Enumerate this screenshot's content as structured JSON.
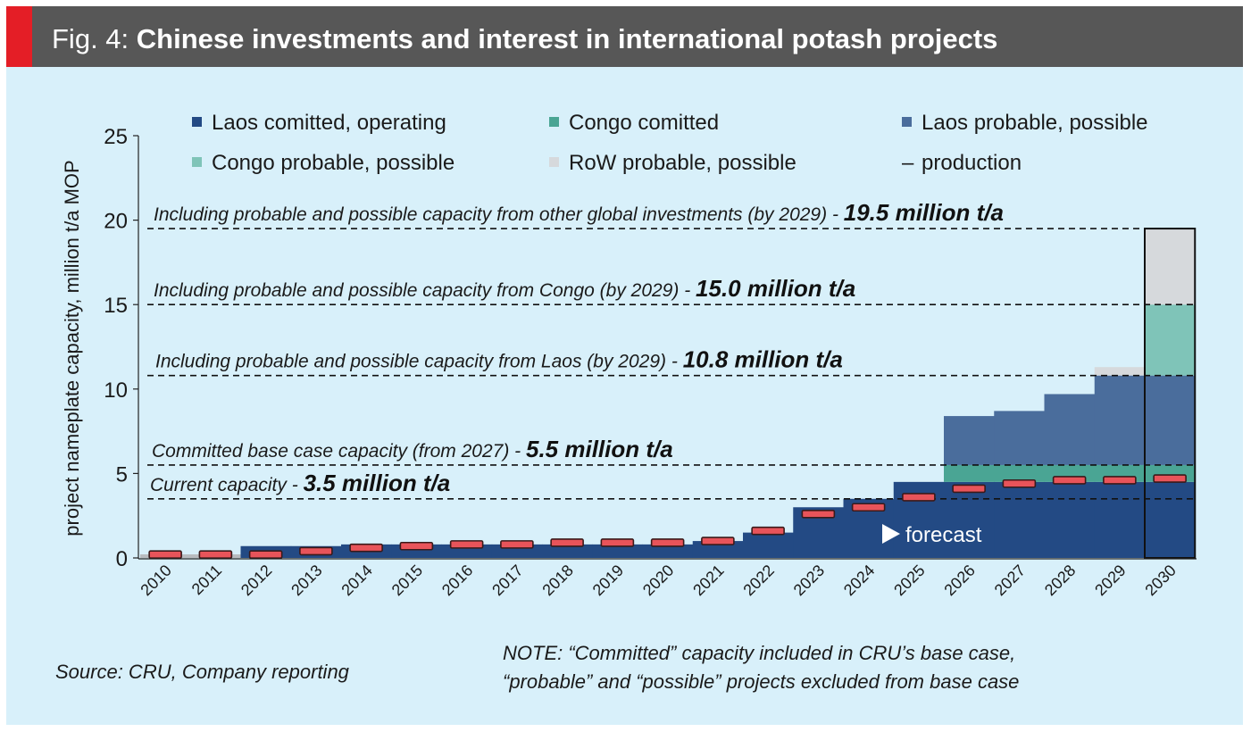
{
  "header": {
    "fig_label": "Fig. 4: ",
    "title": "Chinese investments and interest in international potash projects"
  },
  "colors": {
    "header_bg": "#575757",
    "accent_red": "#e41e26",
    "panel_bg": "#d8f0fa",
    "laos_committed": "#234a84",
    "congo_committed": "#4aa594",
    "laos_probable": "#4a6d9c",
    "congo_probable": "#7fc4b8",
    "row_probable": "#d6d9dc",
    "production": "#e8545a"
  },
  "chart_data": {
    "type": "bar",
    "stacked": true,
    "title": "Chinese investments and interest in international potash projects",
    "xlabel": "",
    "ylabel": "project nameplate capacity, million t/a MOP",
    "ylim": [
      0,
      25
    ],
    "yticks": [
      "0",
      "5",
      "10",
      "15",
      "20",
      "25"
    ],
    "categories": [
      "2010",
      "2011",
      "2012",
      "2013",
      "2014",
      "2015",
      "2016",
      "2017",
      "2018",
      "2019",
      "2020",
      "2021",
      "2022",
      "2023",
      "2024",
      "2025",
      "2026",
      "2027",
      "2028",
      "2029",
      "2030"
    ],
    "series": [
      {
        "name": "Laos comitted, operating",
        "color_key": "laos_committed",
        "values": [
          0,
          0,
          0.7,
          0.7,
          0.8,
          0.8,
          0.8,
          0.8,
          0.8,
          0.8,
          0.8,
          1.0,
          1.5,
          3.0,
          3.5,
          4.5,
          4.5,
          4.5,
          4.5,
          4.5,
          4.5
        ]
      },
      {
        "name": "Congo comitted",
        "color_key": "congo_committed",
        "values": [
          0,
          0,
          0,
          0,
          0,
          0,
          0,
          0,
          0,
          0,
          0,
          0,
          0,
          0,
          0,
          0,
          1.0,
          1.0,
          1.0,
          1.0,
          1.0
        ]
      },
      {
        "name": "Laos probable, possible",
        "color_key": "laos_probable",
        "values": [
          0,
          0,
          0,
          0,
          0,
          0,
          0,
          0,
          0,
          0,
          0,
          0,
          0,
          0,
          0,
          0,
          2.9,
          3.2,
          4.2,
          5.3,
          5.3
        ]
      },
      {
        "name": "Congo probable, possible",
        "color_key": "congo_probable",
        "values": [
          0,
          0,
          0,
          0,
          0,
          0,
          0,
          0,
          0,
          0,
          0,
          0,
          0,
          0,
          0,
          0,
          0,
          0,
          0,
          0,
          4.2
        ]
      },
      {
        "name": "RoW probable, possible",
        "color_key": "row_probable",
        "values": [
          0,
          0,
          0,
          0,
          0,
          0,
          0,
          0,
          0,
          0,
          0,
          0,
          0,
          0,
          0,
          0,
          0,
          0,
          0,
          0.5,
          4.5
        ]
      }
    ],
    "production": {
      "name": "production",
      "values": [
        0.2,
        0.2,
        0.2,
        0.4,
        0.6,
        0.7,
        0.8,
        0.8,
        0.9,
        0.9,
        0.9,
        1.0,
        1.6,
        2.6,
        3.0,
        3.6,
        4.1,
        4.4,
        4.6,
        4.6,
        4.7
      ]
    },
    "legend": {
      "placement": "top",
      "items": [
        "Laos comitted, operating",
        "Congo comitted",
        "Laos probable, possible",
        "Congo probable, possible",
        "RoW probable, possible",
        "production"
      ],
      "production_marker": "–"
    },
    "annotations": [
      {
        "value": 19.5,
        "text": "Including probable and possible capacity from other global investments (by 2029) - ",
        "bold": "19.5 million t/a"
      },
      {
        "value": 15.0,
        "text": "Including probable and possible capacity from Congo (by 2029) - ",
        "bold": "15.0 million t/a"
      },
      {
        "value": 10.8,
        "text": "Including probable and possible capacity from Laos (by 2029) - ",
        "bold": "10.8 million t/a"
      },
      {
        "value": 5.5,
        "text": "Committed base case capacity (from 2027) - ",
        "bold": "5.5 million t/a"
      },
      {
        "value": 3.5,
        "text": "Current capacity - ",
        "bold": "3.5 million t/a"
      }
    ],
    "forecast_label": "forecast",
    "highlighted_category": "2030"
  },
  "footer": {
    "source": "Source: CRU, Company reporting",
    "note_line1": "NOTE: “Committed” capacity included in CRU’s base case,",
    "note_line2": "“probable” and “possible” projects excluded from base case"
  }
}
